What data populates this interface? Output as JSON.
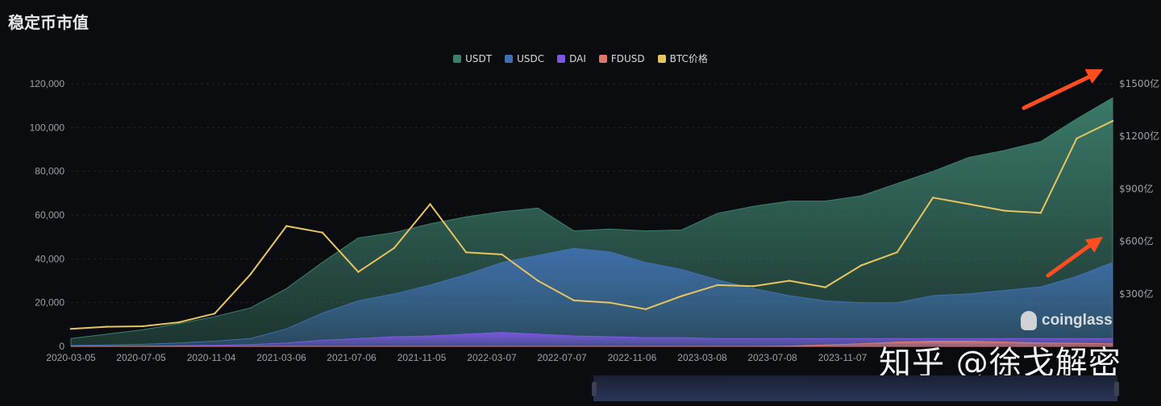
{
  "title": "稳定币市值",
  "watermark": "知乎 @徐戈解密",
  "brand": "coinglass",
  "colors": {
    "USDT": "#3d7f6e",
    "USDC": "#3f6fae",
    "DAI": "#7c58e0",
    "FDUSD": "#e0786a",
    "BTC价格": "#e6c55f",
    "arrow": "#ff4d1f"
  },
  "legend": [
    "USDT",
    "USDC",
    "DAI",
    "FDUSD",
    "BTC价格"
  ],
  "chart_data": {
    "type": "area",
    "title": "稳定币市值",
    "x_ticks": [
      "2020-03-05",
      "2020-07-05",
      "2020-11-04",
      "2021-03-06",
      "2021-07-06",
      "2021-11-05",
      "2022-03-07",
      "2022-07-07",
      "2022-11-06",
      "2023-03-08",
      "2023-07-08",
      "2023-11-07"
    ],
    "y_left_ticks": [
      "0",
      "20,000",
      "40,000",
      "60,000",
      "80,000",
      "100,000",
      "120,000"
    ],
    "y_left_range": [
      0,
      120000
    ],
    "y_right_ticks": [
      "$300亿",
      "$600亿",
      "$900亿",
      "$1200亿",
      "$1500亿"
    ],
    "y_right_range": [
      0,
      1500
    ],
    "x": [
      "2020-03",
      "2020-05",
      "2020-07",
      "2020-09",
      "2020-11",
      "2021-01",
      "2021-03",
      "2021-05",
      "2021-07",
      "2021-09",
      "2021-11",
      "2022-01",
      "2022-03",
      "2022-05",
      "2022-07",
      "2022-09",
      "2022-11",
      "2023-01",
      "2023-03",
      "2023-05",
      "2023-07",
      "2023-09",
      "2023-11",
      "2024-01",
      "2024-03",
      "2024-05",
      "2024-07",
      "2024-09",
      "2024-11",
      "2025-01"
    ],
    "series": [
      {
        "name": "USDT",
        "axis": "right",
        "values": [
          45,
          70,
          95,
          130,
          170,
          220,
          330,
          480,
          620,
          650,
          700,
          740,
          770,
          790,
          660,
          670,
          660,
          665,
          760,
          800,
          830,
          830,
          860,
          930,
          1000,
          1080,
          1120,
          1170,
          1300,
          1420
        ]
      },
      {
        "name": "USDC",
        "axis": "right",
        "values": [
          5,
          8,
          12,
          20,
          30,
          45,
          100,
          190,
          260,
          300,
          350,
          410,
          480,
          520,
          560,
          540,
          480,
          440,
          380,
          330,
          290,
          260,
          250,
          250,
          290,
          300,
          320,
          340,
          400,
          480
        ]
      },
      {
        "name": "DAI",
        "axis": "right",
        "values": [
          1,
          1,
          2,
          4,
          6,
          10,
          20,
          35,
          45,
          55,
          60,
          70,
          80,
          70,
          60,
          55,
          50,
          50,
          45,
          45,
          45,
          45,
          45,
          45,
          45,
          45,
          45,
          45,
          45,
          45
        ]
      },
      {
        "name": "FDUSD",
        "axis": "right",
        "values": [
          0,
          0,
          0,
          0,
          0,
          0,
          0,
          0,
          0,
          0,
          0,
          0,
          0,
          0,
          0,
          0,
          0,
          0,
          0,
          0,
          2,
          8,
          15,
          25,
          30,
          30,
          25,
          20,
          18,
          15
        ]
      },
      {
        "name": "BTC价格",
        "axis": "left",
        "values": [
          8000,
          9000,
          9200,
          11000,
          15000,
          33000,
          55000,
          52000,
          34000,
          45000,
          65000,
          43000,
          42000,
          30000,
          21000,
          20000,
          17000,
          23000,
          28000,
          27500,
          30000,
          27000,
          37000,
          43000,
          68000,
          65000,
          62000,
          61000,
          95000,
          103000
        ]
      }
    ]
  }
}
